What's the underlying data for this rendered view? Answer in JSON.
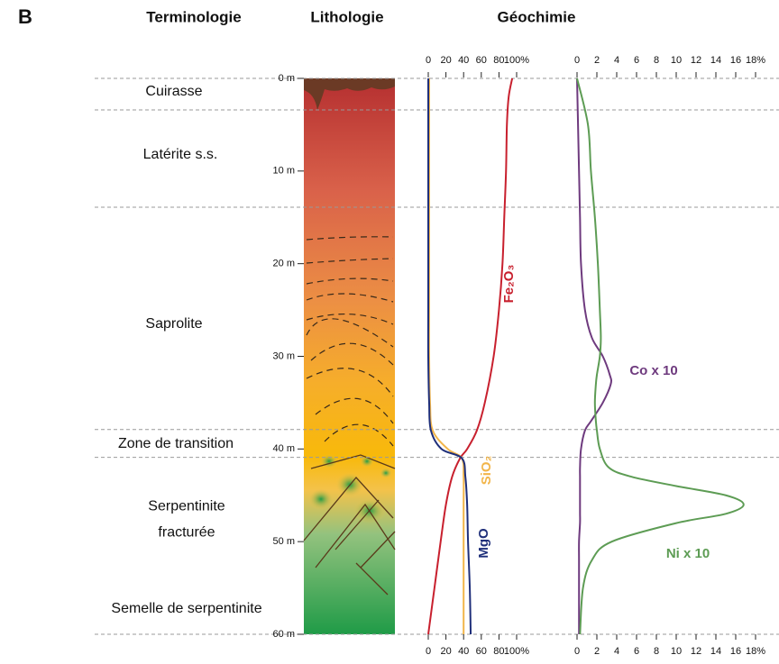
{
  "panel_label": "B",
  "headings": [
    "Terminologie",
    "Lithologie",
    "Géochimie"
  ],
  "terminology": [
    {
      "lines": [
        "Cuirasse"
      ]
    },
    {
      "lines": [
        "Latérite s.s."
      ]
    },
    {
      "lines": [
        "Saprolite"
      ]
    },
    {
      "lines": [
        "Zone de transition"
      ]
    },
    {
      "lines": [
        "Serpentinite",
        "fracturée"
      ]
    },
    {
      "lines": [
        "Semelle de serpentinite"
      ]
    }
  ],
  "boundaries": [
    0,
    3.4,
    13.9,
    37.9,
    40.9,
    60
  ],
  "depth_axis": {
    "lim": [
      0,
      60
    ],
    "ticks": [
      {
        "value": 0,
        "label": "0 m"
      },
      {
        "value": 10,
        "label": "10 m"
      },
      {
        "value": 20,
        "label": "20 m"
      },
      {
        "value": 30,
        "label": "30 m"
      },
      {
        "value": 40,
        "label": "40 m"
      },
      {
        "value": 50,
        "label": "50 m"
      },
      {
        "value": 60,
        "label": "60 m"
      }
    ]
  },
  "chart_data": [
    {
      "type": "line",
      "depth": [
        0,
        2,
        5,
        10,
        15,
        20,
        25,
        30,
        35,
        38,
        40,
        41,
        43,
        46,
        50,
        55,
        60
      ],
      "xlim": [
        0,
        100
      ],
      "xticks": [
        0,
        20,
        40,
        60,
        80,
        {
          "value": 100,
          "label": "100%"
        }
      ],
      "series": [
        {
          "name": "Fe₂O₃",
          "color": "#c8202e",
          "values": [
            95,
            91,
            89,
            88,
            86,
            84,
            80,
            74,
            64,
            55,
            44,
            36,
            27,
            20,
            14,
            7,
            0
          ]
        },
        {
          "name": "SiO₂",
          "color": "#f2b54a",
          "values": [
            1,
            1,
            1,
            1,
            1,
            1,
            1,
            1,
            2,
            5,
            22,
            38,
            40,
            40,
            40,
            40,
            40
          ]
        },
        {
          "name": "MgO",
          "color": "#1f2f7a",
          "values": [
            0,
            0,
            0,
            0,
            0,
            0,
            0,
            0,
            1,
            3,
            15,
            38,
            42,
            44,
            45,
            47,
            48
          ]
        }
      ]
    },
    {
      "type": "line",
      "depth": [
        0,
        5,
        10,
        15,
        20,
        25,
        28,
        30,
        32,
        33,
        35,
        37,
        38,
        40,
        42,
        43,
        44,
        45,
        46,
        47,
        48,
        50,
        52,
        55,
        60
      ],
      "xlim": [
        0,
        18
      ],
      "xticks": [
        0,
        2,
        4,
        6,
        8,
        10,
        12,
        14,
        16,
        {
          "value": 18,
          "label": "18%"
        }
      ],
      "series": [
        {
          "name": "Co x 10",
          "color": "#6e3a7e",
          "values": [
            0,
            0.1,
            0.2,
            0.3,
            0.4,
            0.8,
            1.5,
            2.6,
            3.3,
            3.4,
            2.6,
            1.4,
            0.8,
            0.4,
            0.3,
            0.3,
            0.3,
            0.3,
            0.3,
            0.3,
            0.3,
            0.2,
            0.2,
            0.2,
            0.2
          ]
        },
        {
          "name": "Ni x 10",
          "color": "#5d9c54",
          "values": [
            0,
            1.1,
            1.4,
            1.8,
            2.1,
            2.3,
            2.4,
            2.3,
            2.0,
            1.9,
            1.8,
            1.9,
            2.0,
            2.3,
            3.2,
            5.5,
            10,
            15,
            16.8,
            15,
            10,
            3.5,
            1.5,
            0.6,
            0.3
          ]
        }
      ]
    }
  ]
}
